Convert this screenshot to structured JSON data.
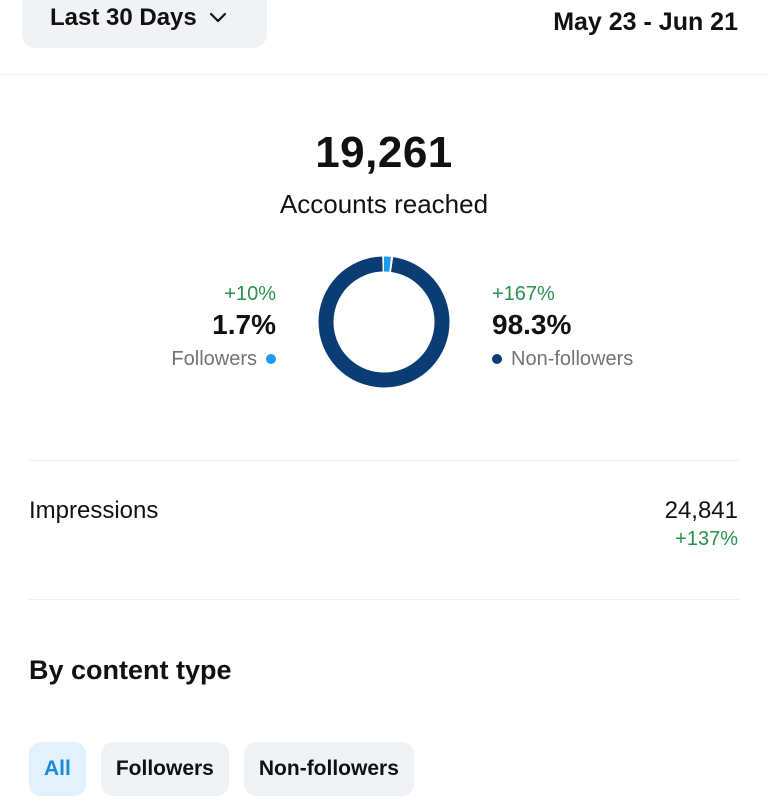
{
  "header": {
    "range_label": "Last 30 Days",
    "date_range": "May 23 - Jun 21"
  },
  "reach": {
    "value": "19,261",
    "label": "Accounts reached",
    "followers": {
      "change": "+10%",
      "percent": "1.7%",
      "label": "Followers",
      "share": 1.7,
      "color": "#1e9bf0"
    },
    "non_followers": {
      "change": "+167%",
      "percent": "98.3%",
      "label": "Non-followers",
      "share": 98.3,
      "color": "#0b3c73"
    }
  },
  "impressions": {
    "label": "Impressions",
    "value": "24,841",
    "change": "+137%"
  },
  "content_type": {
    "title": "By content type",
    "filters": [
      {
        "label": "All",
        "active": true
      },
      {
        "label": "Followers",
        "active": false
      },
      {
        "label": "Non-followers",
        "active": false
      }
    ]
  },
  "colors": {
    "positive": "#2a9050",
    "active_chip_bg": "#e3f1fc",
    "active_chip_text": "#1a8ad9"
  },
  "icons": {
    "range_chevron": "chevron-down-icon"
  }
}
